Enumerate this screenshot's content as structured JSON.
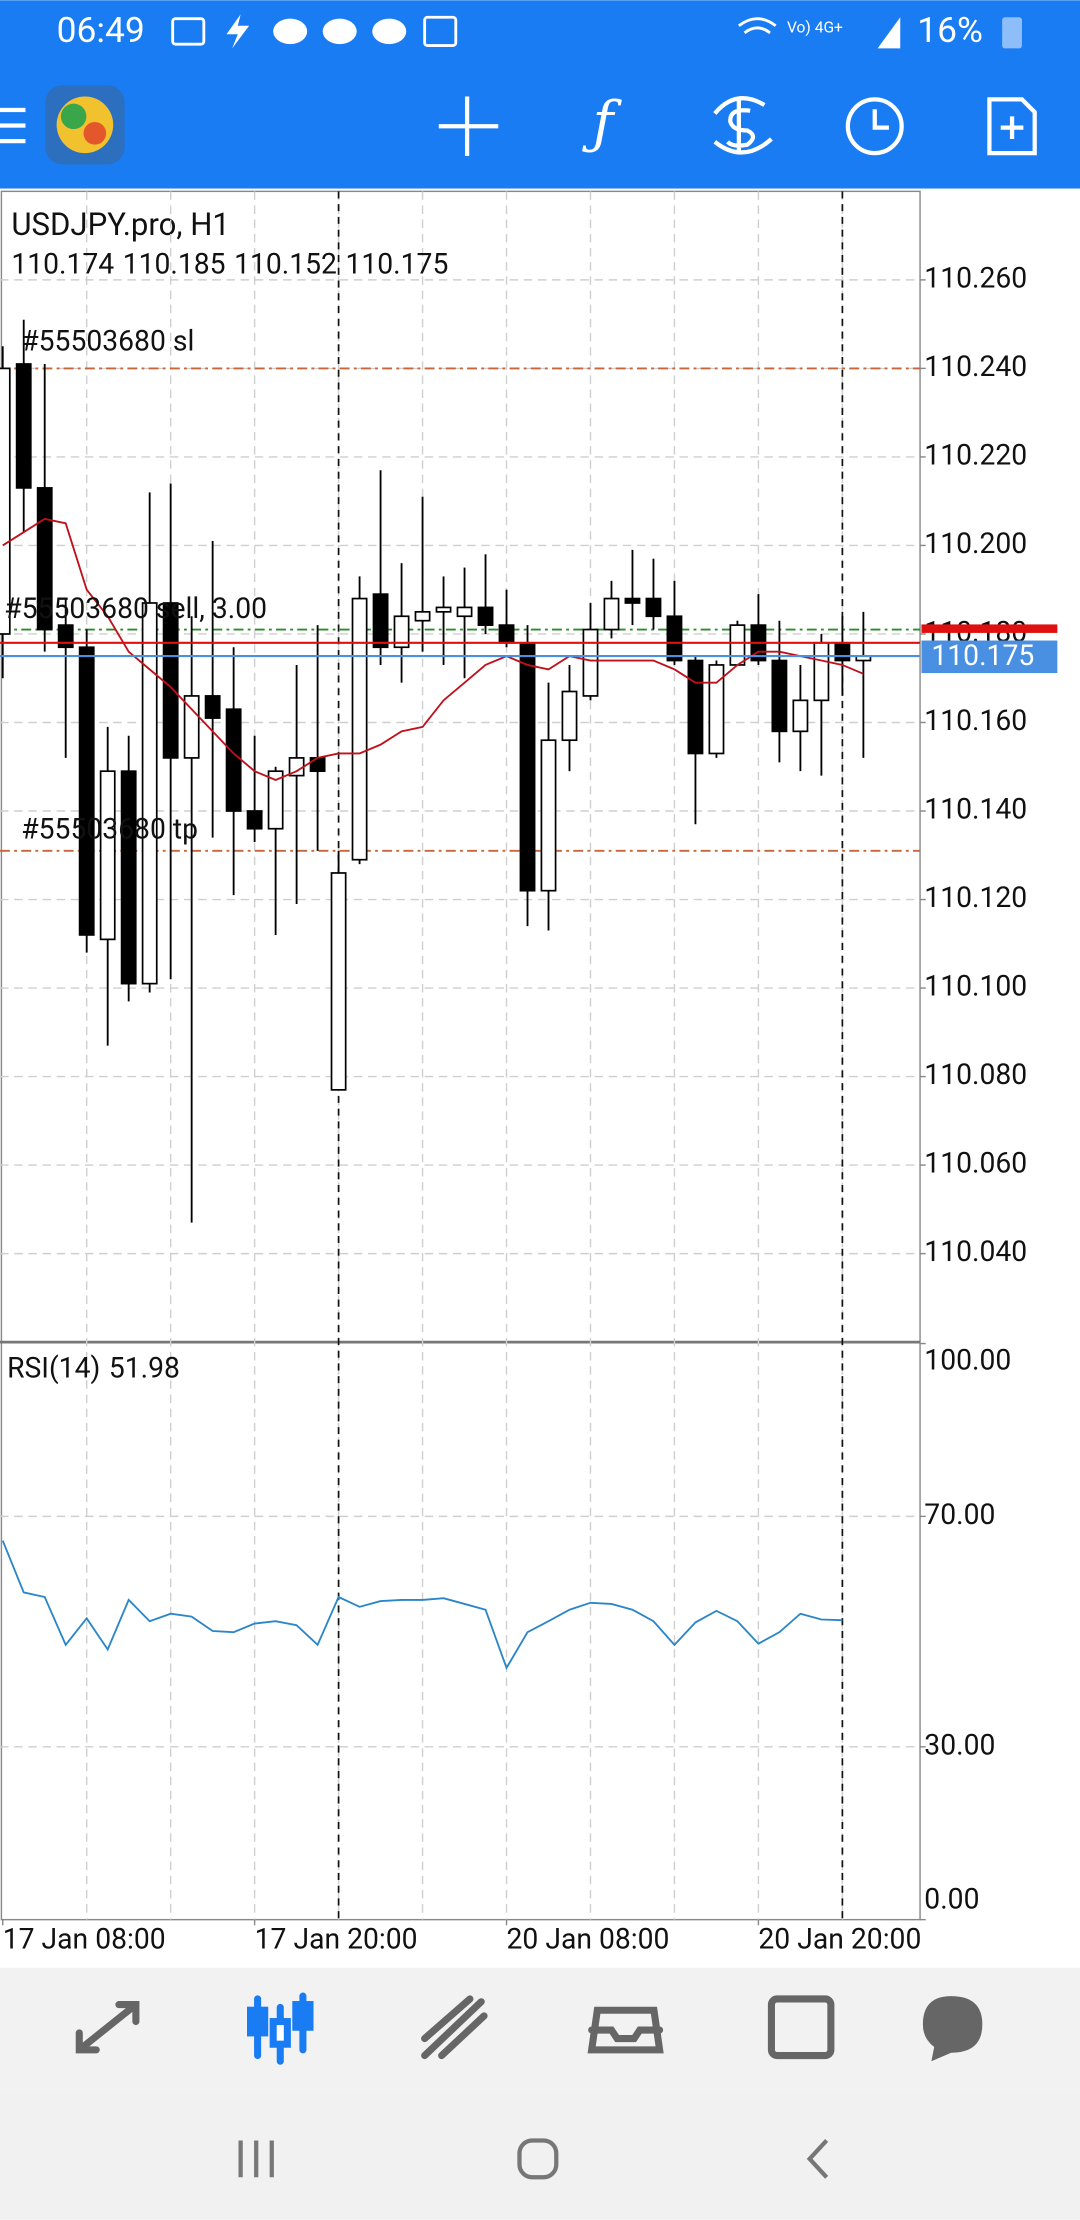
{
  "status_bar": {
    "time": "06:49",
    "battery": "16%"
  },
  "chart_data": {
    "type": "candlestick",
    "title": "USDJPY.pro, H1",
    "open": [
      110.18,
      110.241,
      110.213,
      110.182,
      110.177,
      110.111,
      110.149,
      110.101,
      110.187,
      110.152,
      110.166,
      110.163,
      110.14,
      110.136,
      110.148,
      110.152,
      110.077,
      110.129,
      110.189,
      110.177,
      110.183,
      110.185,
      110.184,
      110.186,
      110.182,
      110.178,
      110.122,
      110.156,
      110.166,
      110.181,
      110.188,
      110.188,
      110.184,
      110.174,
      110.153,
      110.173,
      110.182,
      110.174,
      110.158,
      110.165,
      110.178,
      110.174
    ],
    "high": [
      110.245,
      110.251,
      110.241,
      110.188,
      110.181,
      110.159,
      110.157,
      110.212,
      110.214,
      110.184,
      110.201,
      110.177,
      110.157,
      110.15,
      110.173,
      110.182,
      110.131,
      110.193,
      110.217,
      110.196,
      110.211,
      110.193,
      110.195,
      110.198,
      110.19,
      110.182,
      110.169,
      110.173,
      110.187,
      110.192,
      110.199,
      110.197,
      110.192,
      110.175,
      110.174,
      110.183,
      110.189,
      110.183,
      110.173,
      110.18,
      110.184,
      110.185
    ],
    "low": [
      110.17,
      110.203,
      110.176,
      110.152,
      110.108,
      110.087,
      110.097,
      110.099,
      110.102,
      110.047,
      110.134,
      110.121,
      110.133,
      110.112,
      110.119,
      110.131,
      110.077,
      110.128,
      110.173,
      110.169,
      110.176,
      110.173,
      110.17,
      110.18,
      110.177,
      110.114,
      110.113,
      110.149,
      110.165,
      110.179,
      110.182,
      110.181,
      110.173,
      110.137,
      110.152,
      110.173,
      110.173,
      110.151,
      110.149,
      110.148,
      110.166,
      110.152
    ],
    "close": [
      110.24,
      110.213,
      110.181,
      110.177,
      110.112,
      110.149,
      110.101,
      110.187,
      110.152,
      110.166,
      110.161,
      110.14,
      110.136,
      110.149,
      110.152,
      110.149,
      110.126,
      110.188,
      110.177,
      110.184,
      110.185,
      110.186,
      110.186,
      110.182,
      110.178,
      110.122,
      110.156,
      110.167,
      110.181,
      110.188,
      110.187,
      110.184,
      110.174,
      110.153,
      110.173,
      110.182,
      110.174,
      110.158,
      110.165,
      110.178,
      110.174,
      110.175
    ],
    "ma": {
      "color": "#c0101a",
      "values": [
        110.2,
        110.203,
        110.206,
        110.205,
        110.19,
        110.184,
        110.176,
        110.172,
        110.168,
        110.163,
        110.158,
        110.153,
        110.149,
        110.147,
        110.149,
        110.152,
        110.153,
        110.153,
        110.155,
        110.158,
        110.159,
        110.165,
        110.169,
        110.173,
        110.175,
        110.173,
        110.172,
        110.175,
        110.174,
        110.174,
        110.174,
        110.174,
        110.172,
        110.169,
        110.169,
        110.173,
        110.176,
        110.176,
        110.175,
        110.174,
        110.173,
        110.171
      ]
    },
    "ylim": [
      110.02,
      110.28
    ],
    "yticks": [
      {
        "value": 110.26,
        "label": "110.260"
      },
      {
        "value": 110.24,
        "label": "110.240"
      },
      {
        "value": 110.22,
        "label": "110.220"
      },
      {
        "value": 110.2,
        "label": "110.200"
      },
      {
        "value": 110.18,
        "label": "110.180"
      },
      {
        "value": 110.16,
        "label": "110.160"
      },
      {
        "value": 110.14,
        "label": "110.140"
      },
      {
        "value": 110.12,
        "label": "110.120"
      },
      {
        "value": 110.1,
        "label": "110.100"
      },
      {
        "value": 110.08,
        "label": "110.080"
      },
      {
        "value": 110.06,
        "label": "110.060"
      },
      {
        "value": 110.04,
        "label": "110.040"
      }
    ],
    "xlim": [
      -0.13,
      43.7
    ],
    "xticks": [
      {
        "value": 0,
        "label": "17 Jan 08:00"
      },
      {
        "value": 12,
        "label": "17 Jan 20:00"
      },
      {
        "value": 24,
        "label": "20 Jan 08:00"
      },
      {
        "value": 36,
        "label": "20 Jan 20:00"
      }
    ],
    "xgrid": [
      4,
      8,
      12,
      16,
      20,
      24,
      28,
      32,
      36,
      40
    ],
    "separators": [
      16,
      40
    ],
    "grid": true,
    "levels": [
      {
        "label": "#55503680 sl",
        "value": 110.24,
        "color": "#c8653a"
      },
      {
        "label": "#55503680 sell, 3.00",
        "value": 110.181,
        "color": "#2e8b2e"
      },
      {
        "label": "#55503680 tp",
        "value": 110.131,
        "color": "#c8653a"
      }
    ],
    "ask": 110.178,
    "ask_color": "#e01010",
    "bid": 110.175,
    "bid_color": "#4a90e2",
    "rsi": {
      "title": "RSI(14)",
      "color": "#2a86c8",
      "values": [
        65.8,
        56.8,
        56.0,
        47.7,
        52.3,
        46.9,
        55.5,
        51.8,
        53.1,
        52.6,
        50.1,
        49.9,
        51.4,
        51.8,
        51.1,
        47.7,
        56.0,
        54.3,
        55.3,
        55.5,
        55.5,
        55.8,
        54.8,
        53.8,
        43.7,
        49.9,
        51.8,
        53.8,
        55.0,
        54.8,
        53.8,
        51.8,
        47.7,
        51.6,
        53.6,
        51.8,
        47.9,
        49.9,
        53.1,
        52.1,
        51.98
      ],
      "ylim": [
        0,
        100
      ],
      "yticks": [
        {
          "value": 100,
          "label": "100.00"
        },
        {
          "value": 70,
          "label": "70.00"
        },
        {
          "value": 30,
          "label": "30.00"
        },
        {
          "value": 0,
          "label": "0.00"
        }
      ],
      "grid": [
        70,
        30
      ]
    }
  }
}
